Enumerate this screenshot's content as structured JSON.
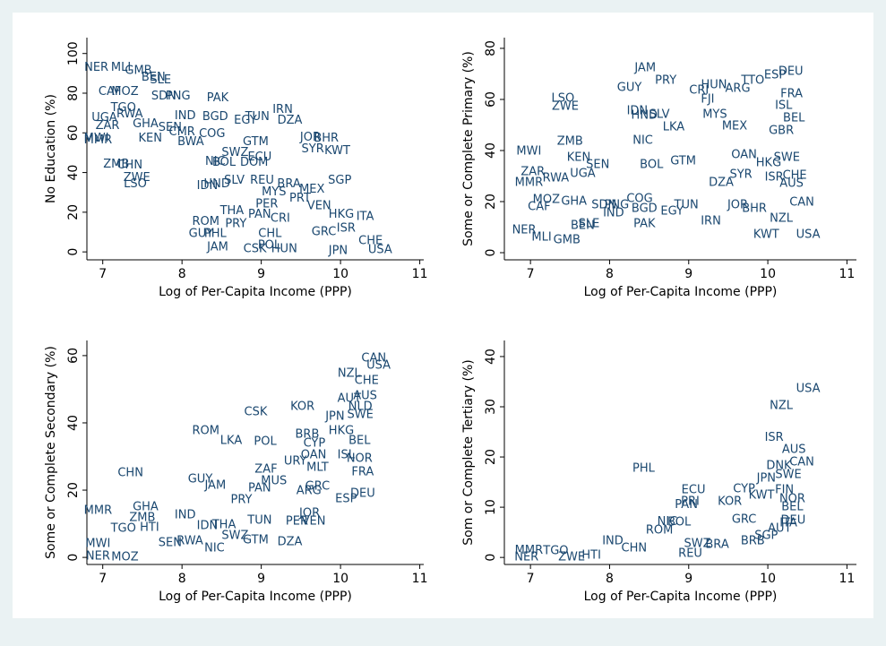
{
  "chart_data": [
    {
      "type": "scatter",
      "xlabel": "Log of Per-Capita Income (PPP)",
      "ylabel": "No Education (%)",
      "color": "#1a476f",
      "xlim": [
        6.8,
        11.05
      ],
      "ylim": [
        -4,
        108
      ],
      "xticks": [
        7,
        8,
        9,
        10,
        11
      ],
      "yticks": [
        0,
        20,
        40,
        60,
        80,
        100
      ],
      "labels": [
        "NER",
        "MLI",
        "GMB",
        "BEN",
        "SLE",
        "CAF",
        "MOZ",
        "TGO",
        "RWA",
        "UGA",
        "ZAR",
        "MWI",
        "MMR",
        "GHA",
        "SEN",
        "CMR",
        "KEN",
        "SDN",
        "PNG",
        "PAK",
        "IND",
        "BGD",
        "EGY",
        "TUN",
        "IRN",
        "DZA",
        "COG",
        "BWA",
        "GTM",
        "JOR",
        "BHR",
        "SYR",
        "KWT",
        "SWZ",
        "ZMB",
        "CHN",
        "ZWE",
        "LSO",
        "NIC",
        "BOL",
        "DOM",
        "ECU",
        "IDN",
        "HND",
        "SLV",
        "REU",
        "BRA",
        "SGP",
        "MYS",
        "MEX",
        "PRT",
        "THA",
        "PAN",
        "PER",
        "CRI",
        "VEN",
        "HKG",
        "ITA",
        "ROM",
        "PRY",
        "GUY",
        "PHL",
        "CHL",
        "ISR",
        "GRC",
        "JAM",
        "CSK",
        "POL",
        "HUN",
        "USA",
        "JPN",
        "CHE"
      ],
      "x": [
        6.92,
        7.23,
        7.45,
        7.64,
        7.73,
        7.09,
        7.28,
        7.26,
        7.34,
        7.02,
        7.06,
        6.92,
        6.94,
        7.54,
        7.85,
        8.0,
        7.6,
        7.77,
        7.95,
        8.45,
        8.04,
        8.42,
        8.8,
        8.95,
        9.27,
        9.36,
        8.38,
        8.11,
        8.93,
        9.62,
        9.82,
        9.65,
        9.96,
        8.67,
        7.17,
        7.34,
        7.43,
        7.41,
        8.42,
        8.53,
        8.91,
        8.98,
        8.32,
        8.44,
        8.66,
        9.01,
        9.35,
        9.99,
        9.16,
        9.64,
        9.49,
        8.63,
        8.98,
        9.07,
        9.24,
        9.73,
        10.01,
        10.31,
        8.3,
        8.68,
        8.24,
        8.42,
        9.11,
        10.07,
        9.79,
        8.45,
        8.92,
        9.1,
        9.29,
        10.5,
        9.97,
        10.38
      ],
      "y": [
        92.8,
        92.8,
        91.4,
        87.8,
        86.5,
        80.6,
        80.6,
        72.5,
        69.4,
        67.6,
        63.5,
        57.2,
        56.3,
        64.4,
        62.6,
        60.4,
        57.2,
        78.4,
        78.4,
        77.5,
        68.5,
        68,
        66.2,
        68,
        71.6,
        66.2,
        59.5,
        55.4,
        55.4,
        57.7,
        57.2,
        51.8,
        50.9,
        50,
        44.1,
        43.7,
        37.4,
        34.2,
        45.5,
        45,
        45,
        47.7,
        33.3,
        34.2,
        36,
        36,
        34.2,
        36,
        30.2,
        31.5,
        27,
        20.7,
        18.9,
        23.9,
        16.7,
        23,
        18.9,
        17.6,
        15.3,
        14,
        9,
        9,
        9,
        11.7,
        9.9,
        2.3,
        1.4,
        3.2,
        1.4,
        0.9,
        0.5,
        5.4
      ]
    },
    {
      "type": "scatter",
      "xlabel": "Log of Per-Capita Income (PPP)",
      "ylabel": "Some or Complete Primary (%)",
      "color": "#1a476f",
      "xlim": [
        6.67,
        11.12
      ],
      "ylim": [
        -2.8,
        84.2
      ],
      "xticks": [
        7,
        8,
        9,
        10,
        11
      ],
      "yticks": [
        0,
        20,
        40,
        60,
        80
      ],
      "labels": [
        "JAM",
        "PRY",
        "GUY",
        "HUN",
        "ESP",
        "DEU",
        "TTO",
        "ARG",
        "CRI",
        "FRA",
        "FJI",
        "LSO",
        "ZWE",
        "ISL",
        "IDN",
        "HND",
        "SLV",
        "MEX",
        "BEL",
        "MYS",
        "LKA",
        "NIC",
        "ZMB",
        "MWI",
        "KEN",
        "BOL",
        "GTM",
        "OAN",
        "GBR",
        "HKG",
        "SWE",
        "SEN",
        "ZAR",
        "RWA",
        "MMR",
        "UGA",
        "SYR",
        "DZA",
        "ISR",
        "CHE",
        "AUS",
        "MOZ",
        "CAF",
        "GHA",
        "SDN",
        "PNG",
        "COG",
        "IND",
        "BGD",
        "EGY",
        "TUN",
        "JOR",
        "BHR",
        "CAN",
        "NZL",
        "PAK",
        "IRN",
        "BEN",
        "SLE",
        "NER",
        "MLI",
        "GMB",
        "KWT",
        "USA"
      ],
      "x": [
        8.45,
        8.71,
        8.25,
        9.32,
        10.09,
        10.29,
        9.81,
        9.62,
        9.13,
        10.3,
        9.24,
        7.41,
        7.44,
        10.2,
        8.35,
        8.44,
        8.63,
        9.58,
        10.33,
        9.33,
        8.81,
        8.42,
        7.5,
        6.98,
        7.61,
        8.53,
        8.93,
        9.7,
        10.17,
        10.01,
        10.24,
        7.85,
        7.03,
        7.32,
        6.98,
        7.66,
        9.66,
        9.41,
        10.08,
        10.34,
        10.3,
        7.2,
        7.11,
        7.55,
        7.93,
        8.09,
        8.38,
        8.05,
        8.44,
        8.79,
        8.97,
        9.62,
        9.83,
        10.43,
        10.17,
        8.44,
        9.28,
        7.66,
        7.74,
        6.92,
        7.14,
        7.46,
        9.98,
        10.51
      ],
      "y": [
        72.3,
        67.4,
        64.6,
        65.6,
        69.5,
        70.9,
        67.4,
        64.2,
        63.5,
        62.1,
        60,
        60.4,
        57.2,
        57.5,
        55.4,
        53.7,
        54,
        49.5,
        52.6,
        54,
        49.1,
        43.9,
        43.5,
        39.6,
        37.2,
        34.4,
        35.8,
        38.2,
        47.7,
        35.1,
        37.2,
        34.4,
        31.6,
        29.1,
        27.4,
        30.9,
        30.5,
        27.4,
        29.5,
        30.2,
        27,
        20.7,
        17.9,
        20,
        18.6,
        18.6,
        21,
        15.4,
        17.2,
        16.1,
        18.6,
        18.6,
        17.2,
        19.6,
        13.3,
        11.2,
        12.3,
        10.5,
        11.2,
        8.8,
        6,
        4.9,
        7,
        7
      ]
    },
    {
      "type": "scatter",
      "xlabel": "Log of Per-Capita Income (PPP)",
      "ylabel": "Some or Complete Secondary (%)",
      "color": "#1a476f",
      "xlim": [
        6.8,
        11.05
      ],
      "ylim": [
        -2.1,
        64.5
      ],
      "xticks": [
        7,
        8,
        9,
        10,
        11
      ],
      "yticks": [
        0,
        20,
        40,
        60
      ],
      "labels": [
        "CAN",
        "USA",
        "NZL",
        "CHE",
        "AUS",
        "AUT",
        "NLD",
        "CSK",
        "KOR",
        "JPN",
        "SWE",
        "ROM",
        "LKA",
        "POL",
        "BRB",
        "HKG",
        "CYP",
        "BEL",
        "URY",
        "OAN",
        "MLT",
        "ISL",
        "NOR",
        "FRA",
        "CHN",
        "GUY",
        "JAM",
        "ZAF",
        "MUS",
        "PAN",
        "ARG",
        "DEU",
        "ESP",
        "GRC",
        "MMR",
        "GHA",
        "ZMB",
        "TGO",
        "HTI",
        "IND",
        "PRY",
        "IDN",
        "THA",
        "SWZ",
        "GTM",
        "TUN",
        "JOR",
        "PER",
        "VEN",
        "DZA",
        "NIC",
        "RWA",
        "MWI",
        "NER",
        "MOZ",
        "SEN"
      ],
      "x": [
        10.42,
        10.48,
        10.11,
        10.33,
        10.31,
        10.11,
        10.25,
        8.93,
        9.52,
        9.93,
        10.25,
        8.3,
        8.62,
        9.05,
        9.58,
        10.01,
        9.67,
        10.24,
        9.43,
        9.66,
        9.71,
        10.07,
        10.24,
        10.28,
        7.35,
        8.23,
        8.42,
        9.06,
        9.16,
        8.98,
        9.6,
        10.28,
        10.07,
        9.71,
        6.94,
        7.54,
        7.5,
        7.26,
        7.59,
        8.04,
        8.75,
        8.32,
        8.53,
        8.67,
        8.93,
        8.98,
        9.61,
        9.45,
        9.66,
        9.36,
        8.41,
        8.1,
        6.94,
        6.94,
        7.28,
        7.85
      ],
      "y": [
        59.2,
        57.1,
        54.7,
        52.5,
        48,
        47.2,
        44.8,
        43.2,
        44.8,
        41.9,
        42.4,
        37.6,
        34.7,
        34.4,
        36.5,
        37.6,
        33.9,
        34.7,
        28.5,
        30.4,
        26.7,
        30.4,
        29.3,
        25.3,
        25.1,
        23.2,
        21.3,
        26.1,
        22.7,
        20.5,
        19.7,
        18.9,
        17.3,
        21.1,
        13.9,
        14.9,
        11.7,
        8.5,
        8.8,
        12.5,
        17.1,
        9.3,
        9.6,
        6.4,
        5.1,
        10.9,
        13.1,
        10.7,
        10.7,
        4.5,
        2.7,
        4.8,
        4,
        0.3,
        0,
        4.3
      ]
    },
    {
      "type": "scatter",
      "xlabel": "Log of Per-Capita Income (PPP)",
      "ylabel": "Som or Complete Tertiary (%)",
      "color": "#1a476f",
      "xlim": [
        6.67,
        11.12
      ],
      "ylim": [
        -1.4,
        43.2
      ],
      "xticks": [
        7,
        8,
        9,
        10,
        11
      ],
      "yticks": [
        0,
        10,
        20,
        30,
        40
      ],
      "labels": [
        "USA",
        "NZL",
        "ISR",
        "AUS",
        "CAN",
        "DNK",
        "SWE",
        "JPN",
        "PHL",
        "CYP",
        "FIN",
        "ECU",
        "NOR",
        "KOR",
        "PRI",
        "PAN",
        "KWT",
        "BEL",
        "ITA",
        "DEU",
        "AUT",
        "NIC",
        "BOL",
        "ROM",
        "GRC",
        "SGP",
        "BRB",
        "IND",
        "REU",
        "BRA",
        "MMR",
        "TGO",
        "NER",
        "ZWE",
        "HTI",
        "CHN",
        "SWZ"
      ],
      "x": [
        10.51,
        10.17,
        10.08,
        10.33,
        10.43,
        10.14,
        10.26,
        9.98,
        8.43,
        9.7,
        10.21,
        9.06,
        10.31,
        9.52,
        9.02,
        8.97,
        9.92,
        10.31,
        10.26,
        10.32,
        10.15,
        8.73,
        8.88,
        8.63,
        9.7,
        9.98,
        9.81,
        8.04,
        9.02,
        9.36,
        6.98,
        7.32,
        6.95,
        7.52,
        7.77,
        8.31,
        9.11
      ],
      "y": [
        33.6,
        30.2,
        23.8,
        21.4,
        18.9,
        18.2,
        16.4,
        15.7,
        17.7,
        13.6,
        13.4,
        13.4,
        11.6,
        11.1,
        11.1,
        10.5,
        12.3,
        10,
        6.8,
        7.3,
        5.7,
        7.1,
        7,
        5.4,
        7.5,
        4.3,
        3.2,
        3.2,
        0.7,
        2.5,
        1.4,
        1.3,
        0,
        0,
        0.4,
        1.8,
        2.7
      ]
    }
  ]
}
